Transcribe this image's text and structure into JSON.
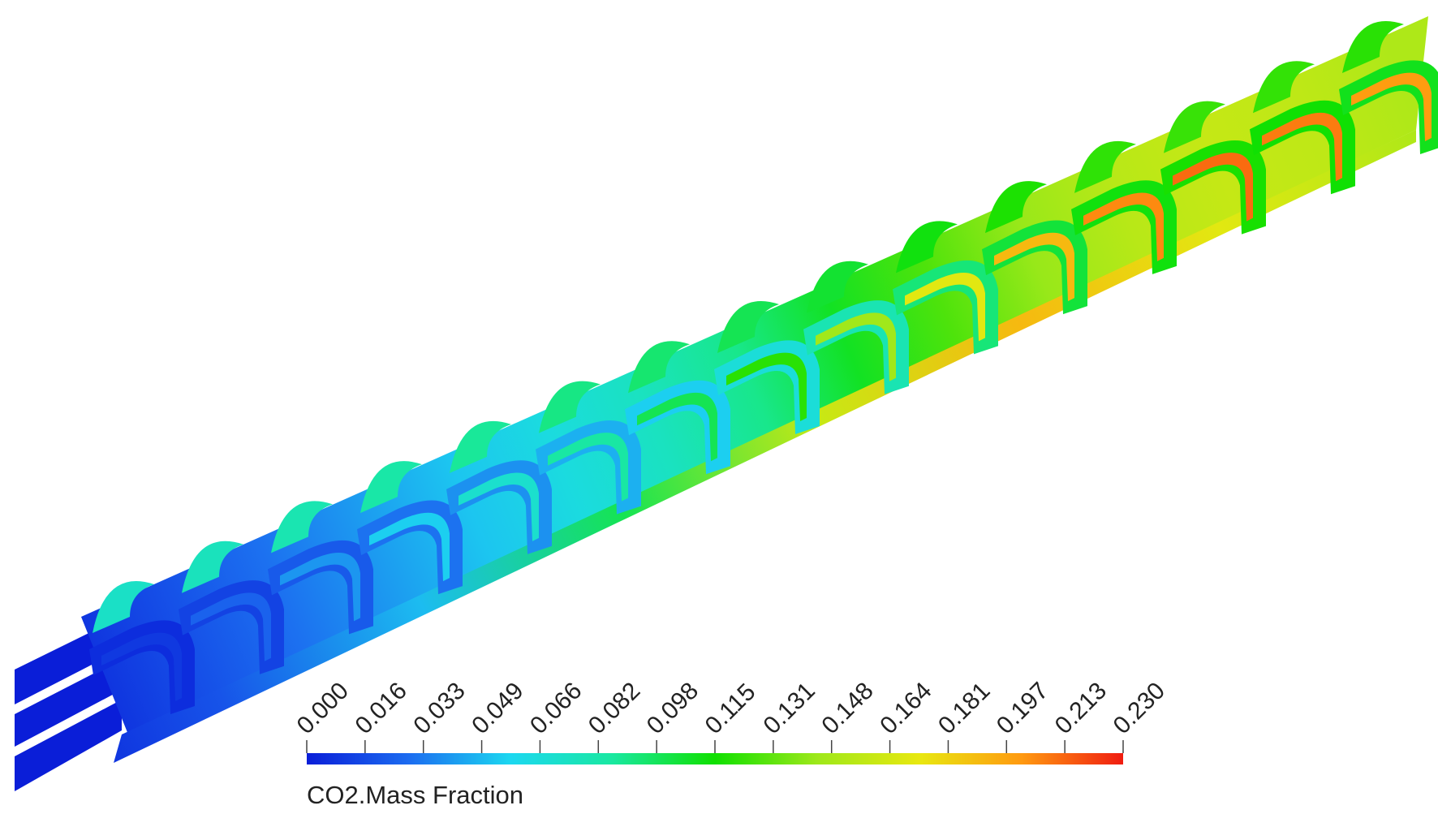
{
  "legend": {
    "title": "CO2.Mass Fraction",
    "ticks": [
      "0.000",
      "0.016",
      "0.033",
      "0.049",
      "0.066",
      "0.082",
      "0.098",
      "0.115",
      "0.131",
      "0.148",
      "0.164",
      "0.181",
      "0.197",
      "0.213",
      "0.230"
    ],
    "colormap": [
      "#0a1ed8",
      "#1c6cf0",
      "#1cd8f0",
      "#19e8a0",
      "#10e000",
      "#9ee81a",
      "#e8e810",
      "#ff9a10",
      "#f01c10"
    ],
    "range": [
      0.0,
      0.23
    ]
  },
  "field": {
    "chamber_count": 15,
    "chamber_values": [
      0.01,
      0.025,
      0.04,
      0.055,
      0.07,
      0.085,
      0.1,
      0.12,
      0.145,
      0.17,
      0.19,
      0.205,
      0.212,
      0.208,
      0.2
    ],
    "bottom_edge_values": [
      0.0,
      0.02,
      0.05,
      0.1,
      0.16,
      0.19,
      0.17,
      0.15
    ]
  }
}
